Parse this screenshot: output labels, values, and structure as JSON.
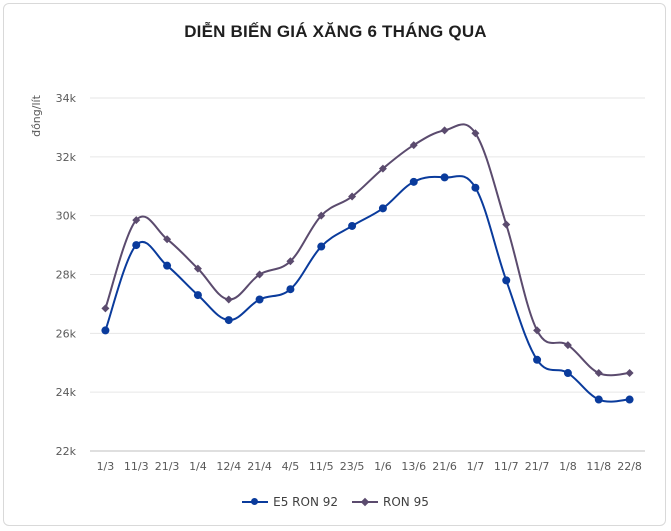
{
  "chart_data": {
    "type": "line",
    "title": "DIỄN BIẾN GIÁ XĂNG 6 THÁNG QUA",
    "xlabel": "",
    "ylabel": "đồng/lít",
    "categories": [
      "1/3",
      "11/3",
      "21/3",
      "1/4",
      "12/4",
      "21/4",
      "4/5",
      "11/5",
      "23/5",
      "1/6",
      "13/6",
      "21/6",
      "1/7",
      "11/7",
      "21/7",
      "1/8",
      "11/8",
      "22/8"
    ],
    "ylim": [
      22000,
      34000
    ],
    "yticks": [
      22000,
      24000,
      26000,
      28000,
      30000,
      32000,
      34000
    ],
    "ytick_labels": [
      "22k",
      "24k",
      "26k",
      "28k",
      "30k",
      "32k",
      "34k"
    ],
    "grid": true,
    "legend_position": "bottom",
    "series": [
      {
        "name": "E5 RON 92",
        "color": "#0a3b9c",
        "marker": "circle",
        "values": [
          26100,
          29000,
          28300,
          27300,
          26450,
          27150,
          27500,
          28950,
          29650,
          30250,
          31150,
          31300,
          30950,
          27800,
          25100,
          24650,
          23750,
          23750
        ]
      },
      {
        "name": "RON 95",
        "color": "#5b4b6e",
        "marker": "diamond",
        "values": [
          26850,
          29850,
          29200,
          28200,
          27150,
          28000,
          28450,
          30000,
          30650,
          31600,
          32400,
          32900,
          32800,
          29700,
          26100,
          25600,
          24650,
          24650
        ]
      }
    ]
  }
}
